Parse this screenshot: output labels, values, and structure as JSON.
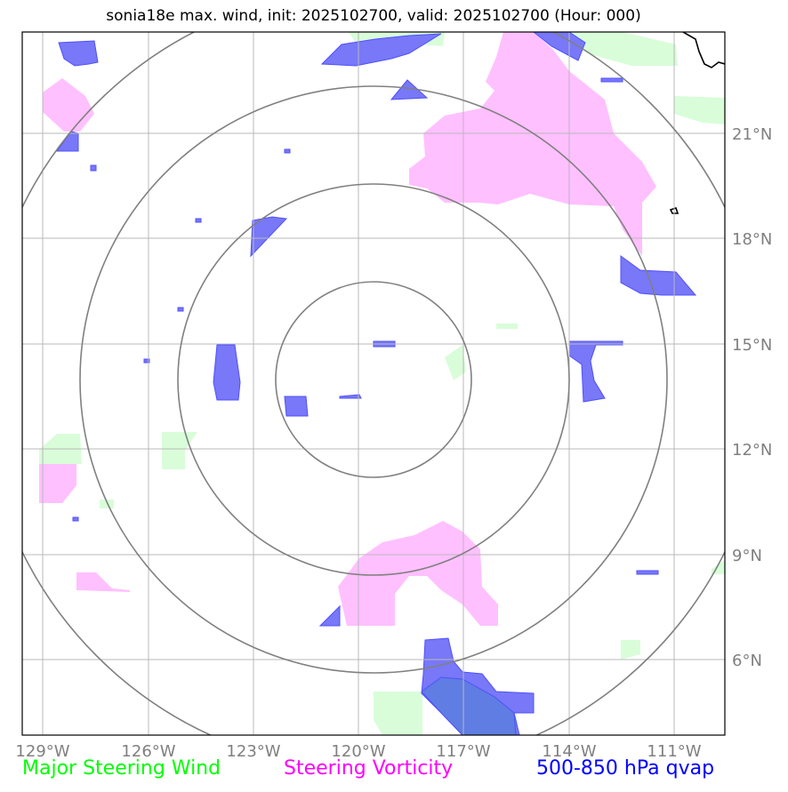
{
  "title": "sonia18e max. wind, init: 2025102700, valid: 2025102700 (Hour: 000)",
  "legend": [
    {
      "label": "Major Steering Wind",
      "color": "#00ff00"
    },
    {
      "label": "Steering Vorticity",
      "color": "#ff00ff"
    },
    {
      "label": "500-850 hPa qvap",
      "color": "#0000ff"
    }
  ],
  "colors": {
    "wind_fill": "#d9fdd9",
    "vorticity_fill": "#ffc0ff",
    "qvap_fill": "#7878f8",
    "qvap_dark": "#5f7de2",
    "rings": "#808080",
    "grid": "#b8b8b8"
  },
  "lon_labels": [
    "129°W",
    "126°W",
    "123°W",
    "120°W",
    "117°W",
    "114°W",
    "111°W"
  ],
  "lat_labels": [
    "21°N",
    "18°N",
    "15°N",
    "12°N",
    "9°N",
    "6°N"
  ]
}
